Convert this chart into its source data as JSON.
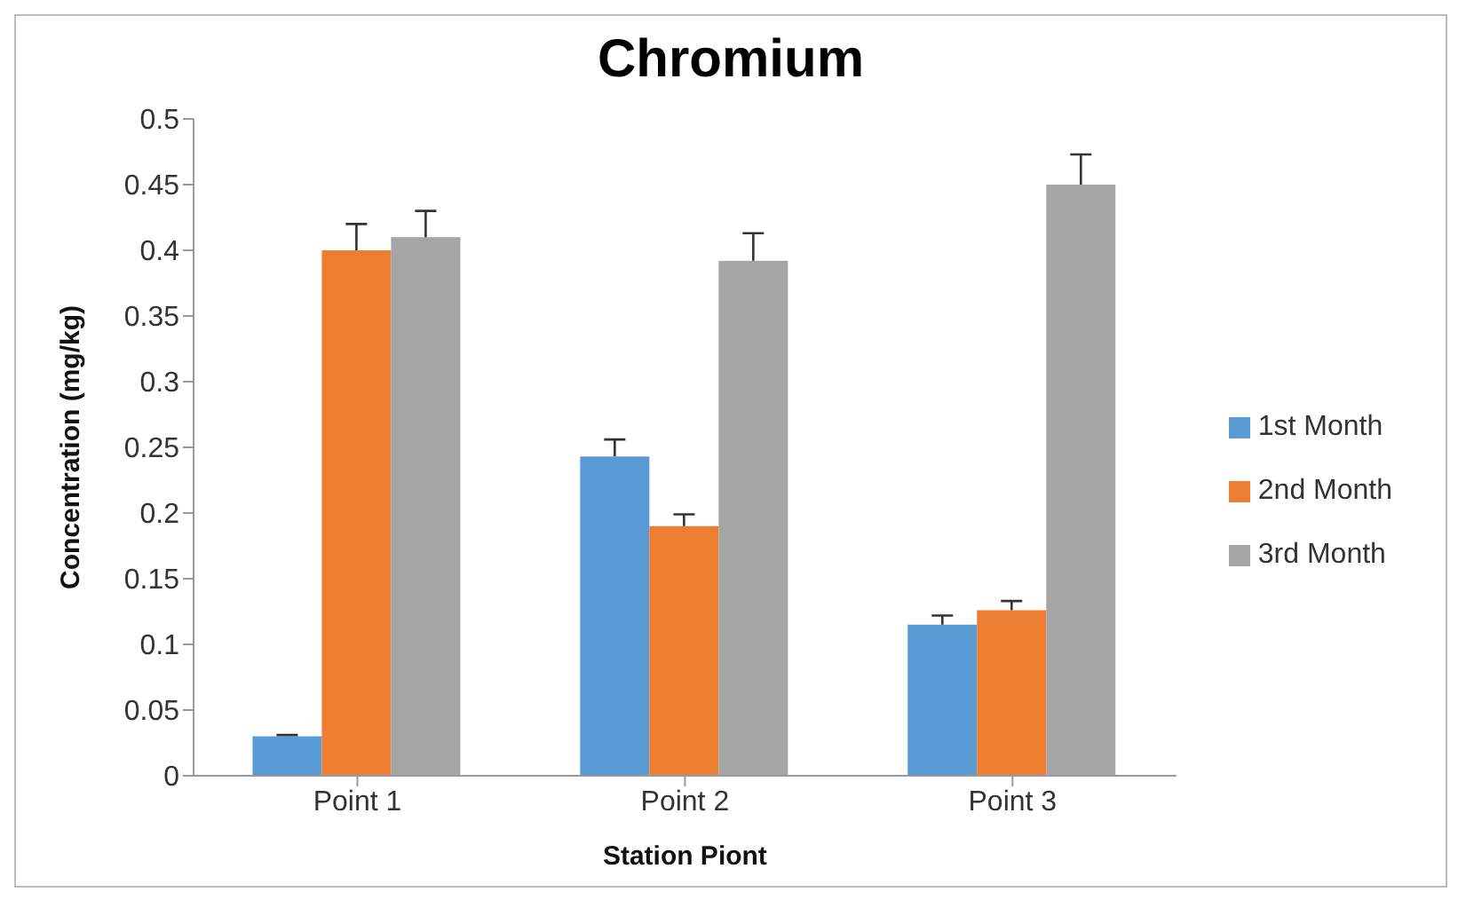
{
  "chart_data": {
    "type": "bar",
    "title": "Chromium",
    "xlabel": "Station Piont",
    "ylabel": "Concentration (mg/kg)",
    "categories": [
      "Point 1",
      "Point 2",
      "Point 3"
    ],
    "series": [
      {
        "name": "1st Month",
        "color": "#5b9bd5",
        "values": [
          0.03,
          0.243,
          0.115
        ],
        "errors": [
          [
            0.03,
            0.031
          ],
          [
            0.243,
            0.256
          ],
          [
            0.115,
            0.122
          ]
        ]
      },
      {
        "name": "2nd Month",
        "color": "#ed7d31",
        "values": [
          0.4,
          0.19,
          0.126
        ],
        "errors": [
          [
            0.4,
            0.42
          ],
          [
            0.19,
            0.199
          ],
          [
            0.126,
            0.133
          ]
        ]
      },
      {
        "name": "3rd Month",
        "color": "#a5a5a5",
        "values": [
          0.41,
          0.392,
          0.45
        ],
        "errors": [
          [
            0.41,
            0.43
          ],
          [
            0.392,
            0.413
          ],
          [
            0.45,
            0.473
          ]
        ]
      }
    ],
    "ylim": [
      0,
      0.5
    ],
    "yticks": [
      0,
      0.05,
      0.1,
      0.15,
      0.2,
      0.25,
      0.3,
      0.35,
      0.4,
      0.45,
      0.5
    ],
    "grid": false,
    "legend": "right"
  }
}
